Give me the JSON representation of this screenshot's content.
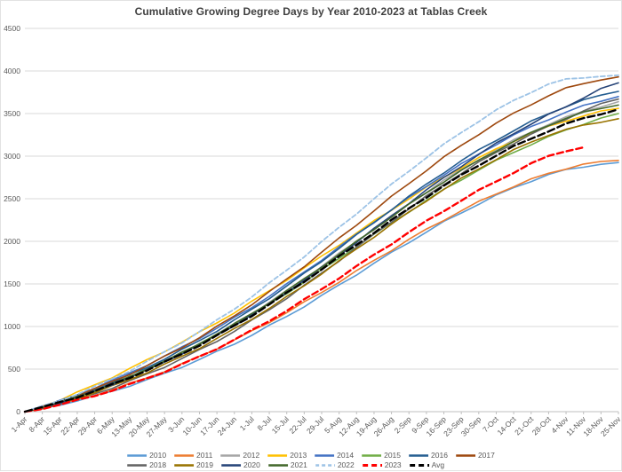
{
  "title": "Cumulative Growing Degree Days by Year 2010-2023 at Tablas Creek",
  "chart_data": {
    "type": "line",
    "title": "Cumulative Growing Degree Days by Year 2010-2023 at Tablas Creek",
    "xlabel": "",
    "ylabel": "",
    "ylim": [
      0,
      4500
    ],
    "yticks": [
      0,
      500,
      1000,
      1500,
      2000,
      2500,
      3000,
      3500,
      4000,
      4500
    ],
    "grid": true,
    "legend_position": "bottom",
    "x": [
      "1-Apr",
      "8-Apr",
      "15-Apr",
      "22-Apr",
      "29-Apr",
      "6-May",
      "13-May",
      "20-May",
      "27-May",
      "3-Jun",
      "10-Jun",
      "17-Jun",
      "24-Jun",
      "1-Jul",
      "8-Jul",
      "15-Jul",
      "22-Jul",
      "29-Jul",
      "5-Aug",
      "12-Aug",
      "19-Aug",
      "26-Aug",
      "2-Sep",
      "9-Sep",
      "16-Sep",
      "23-Sep",
      "30-Sep",
      "7-Oct",
      "14-Oct",
      "21-Oct",
      "28-Oct",
      "4-Nov",
      "11-Nov",
      "18-Nov",
      "25-Nov"
    ],
    "series": [
      {
        "name": "2010",
        "color": "#5B9BD5",
        "dash": "",
        "width": 1.6,
        "values": [
          0,
          35,
          80,
          130,
          180,
          240,
          305,
          372,
          448,
          528,
          612,
          702,
          798,
          900,
          1008,
          1120,
          1238,
          1360,
          1485,
          1612,
          1740,
          1866,
          1990,
          2110,
          2226,
          2336,
          2440,
          2538,
          2628,
          2710,
          2782,
          2838,
          2878,
          2905,
          2925
        ]
      },
      {
        "name": "2011",
        "color": "#ED7D31",
        "dash": "",
        "width": 1.6,
        "values": [
          0,
          40,
          86,
          138,
          195,
          258,
          325,
          398,
          476,
          560,
          648,
          742,
          840,
          944,
          1052,
          1165,
          1282,
          1402,
          1525,
          1650,
          1775,
          1898,
          2020,
          2138,
          2252,
          2360,
          2462,
          2558,
          2646,
          2726,
          2798,
          2856,
          2902,
          2932,
          2950
        ]
      },
      {
        "name": "2012",
        "color": "#A5A5A5",
        "dash": "",
        "width": 1.6,
        "values": [
          0,
          50,
          110,
          175,
          245,
          322,
          405,
          495,
          590,
          688,
          795,
          908,
          1025,
          1150,
          1280,
          1418,
          1560,
          1705,
          1855,
          2000,
          2148,
          2295,
          2440,
          2580,
          2715,
          2840,
          2960,
          3075,
          3185,
          3285,
          3375,
          3455,
          3525,
          3585,
          3640
        ]
      },
      {
        "name": "2013",
        "color": "#FFC000",
        "dash": "",
        "width": 1.6,
        "values": [
          0,
          65,
          140,
          225,
          312,
          405,
          505,
          605,
          710,
          818,
          930,
          1045,
          1165,
          1290,
          1418,
          1550,
          1685,
          1822,
          1960,
          2098,
          2235,
          2370,
          2502,
          2630,
          2752,
          2868,
          2978,
          3082,
          3178,
          3265,
          3345,
          3415,
          3475,
          3522,
          3560
        ]
      },
      {
        "name": "2014",
        "color": "#4472C4",
        "dash": "",
        "width": 1.6,
        "values": [
          0,
          58,
          125,
          200,
          280,
          365,
          455,
          550,
          650,
          755,
          865,
          980,
          1100,
          1225,
          1360,
          1495,
          1640,
          1785,
          1930,
          2080,
          2225,
          2370,
          2510,
          2650,
          2780,
          2905,
          3025,
          3140,
          3245,
          3345,
          3435,
          3515,
          3590,
          3650,
          3700
        ]
      },
      {
        "name": "2015",
        "color": "#70AD47",
        "dash": "",
        "width": 1.6,
        "values": [
          0,
          52,
          112,
          178,
          250,
          328,
          410,
          500,
          595,
          692,
          795,
          905,
          1020,
          1140,
          1262,
          1390,
          1525,
          1660,
          1800,
          1940,
          2078,
          2215,
          2350,
          2480,
          2605,
          2725,
          2840,
          2945,
          3045,
          3140,
          3225,
          3305,
          3380,
          3445,
          3500
        ]
      },
      {
        "name": "2016",
        "color": "#255E91",
        "dash": "",
        "width": 1.6,
        "values": [
          0,
          55,
          118,
          188,
          262,
          342,
          430,
          522,
          620,
          725,
          835,
          950,
          1072,
          1200,
          1335,
          1475,
          1620,
          1768,
          1920,
          2072,
          2225,
          2375,
          2525,
          2670,
          2810,
          2945,
          3070,
          3190,
          3300,
          3405,
          3500,
          3585,
          3655,
          3715,
          3760
        ]
      },
      {
        "name": "2017",
        "color": "#9E480E",
        "dash": "",
        "width": 1.6,
        "values": [
          0,
          55,
          120,
          190,
          268,
          352,
          442,
          540,
          645,
          755,
          872,
          995,
          1125,
          1262,
          1405,
          1555,
          1710,
          1870,
          2032,
          2196,
          2360,
          2522,
          2680,
          2835,
          2985,
          3125,
          3260,
          3385,
          3500,
          3610,
          3710,
          3795,
          3855,
          3900,
          3930
        ]
      },
      {
        "name": "2018",
        "color": "#636363",
        "dash": "",
        "width": 1.6,
        "values": [
          0,
          42,
          92,
          148,
          210,
          280,
          358,
          440,
          528,
          622,
          722,
          830,
          945,
          1068,
          1198,
          1335,
          1478,
          1625,
          1775,
          1928,
          2080,
          2232,
          2382,
          2528,
          2668,
          2800,
          2925,
          3042,
          3152,
          3255,
          3350,
          3438,
          3532,
          3610,
          3670
        ]
      },
      {
        "name": "2019",
        "color": "#997300",
        "dash": "",
        "width": 1.6,
        "values": [
          0,
          45,
          98,
          158,
          225,
          298,
          378,
          462,
          552,
          648,
          750,
          858,
          970,
          1090,
          1215,
          1345,
          1482,
          1622,
          1765,
          1910,
          2055,
          2198,
          2340,
          2478,
          2610,
          2735,
          2855,
          2965,
          3070,
          3165,
          3250,
          3310,
          3360,
          3405,
          3440
        ]
      },
      {
        "name": "2020",
        "color": "#264478",
        "dash": "",
        "width": 1.6,
        "values": [
          0,
          50,
          108,
          172,
          242,
          320,
          402,
          490,
          585,
          682,
          788,
          898,
          1015,
          1138,
          1268,
          1402,
          1545,
          1690,
          1840,
          1992,
          2145,
          2298,
          2450,
          2600,
          2745,
          2885,
          3020,
          3148,
          3268,
          3380,
          3485,
          3580,
          3690,
          3790,
          3860
        ]
      },
      {
        "name": "2021",
        "color": "#43682B",
        "dash": "",
        "width": 1.6,
        "values": [
          0,
          52,
          110,
          176,
          248,
          325,
          408,
          498,
          592,
          692,
          798,
          910,
          1028,
          1152,
          1282,
          1418,
          1558,
          1702,
          1848,
          1995,
          2142,
          2288,
          2430,
          2570,
          2702,
          2830,
          2950,
          3065,
          3172,
          3272,
          3365,
          3448,
          3510,
          3560,
          3600
        ]
      },
      {
        "name": "2022",
        "color": "#9DC3E6",
        "dash": "5 3",
        "width": 1.8,
        "values": [
          0,
          60,
          130,
          208,
          292,
          385,
          482,
          588,
          698,
          815,
          940,
          1070,
          1208,
          1352,
          1505,
          1662,
          1825,
          1992,
          2160,
          2330,
          2498,
          2665,
          2828,
          2985,
          3135,
          3278,
          3412,
          3538,
          3652,
          3755,
          3845,
          3900,
          3925,
          3940,
          3950
        ]
      },
      {
        "name": "2023",
        "color": "#FF0000",
        "dash": "7 4",
        "width": 2.4,
        "values": [
          0,
          38,
          82,
          132,
          188,
          250,
          318,
          392,
          470,
          555,
          645,
          742,
          845,
          952,
          1068,
          1188,
          1312,
          1440,
          1572,
          1705,
          1840,
          1972,
          2105,
          2235,
          2360,
          2480,
          2595,
          2705,
          2810,
          2910,
          3000,
          3065,
          3100,
          null,
          null
        ]
      },
      {
        "name": "Avg",
        "color": "#000000",
        "dash": "8 4",
        "width": 2.4,
        "values": [
          0,
          50,
          108,
          172,
          242,
          318,
          400,
          488,
          580,
          678,
          782,
          892,
          1008,
          1130,
          1258,
          1392,
          1530,
          1672,
          1816,
          1960,
          2104,
          2246,
          2385,
          2520,
          2650,
          2775,
          2895,
          3008,
          3112,
          3208,
          3296,
          3375,
          3445,
          3500,
          3550
        ]
      }
    ],
    "legend_rows": [
      [
        "2010",
        "2011",
        "2012",
        "2013",
        "2014",
        "2015",
        "2016",
        "2017"
      ],
      [
        "2018",
        "2019",
        "2020",
        "2021",
        "2022",
        "2023",
        "Avg"
      ]
    ]
  },
  "colors": {
    "gridline": "#D9D9D9",
    "axis": "#BFBFBF",
    "tick_label": "#595959",
    "title": "#404040"
  }
}
